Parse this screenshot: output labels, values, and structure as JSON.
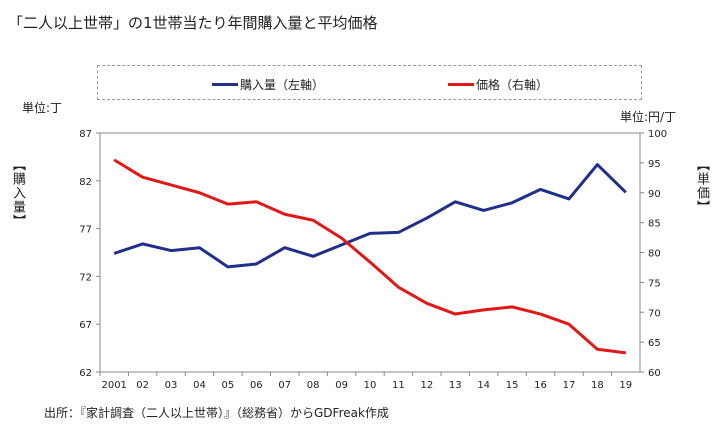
{
  "chart_data": {
    "type": "line",
    "title": "「二人以上世帯」の1世帯当たり年間購入量と平均価格",
    "categories": [
      "2001",
      "02",
      "03",
      "04",
      "05",
      "06",
      "07",
      "08",
      "09",
      "10",
      "11",
      "12",
      "13",
      "14",
      "15",
      "16",
      "17",
      "18",
      "19"
    ],
    "series": [
      {
        "name": "購入量（左軸）",
        "axis": "left",
        "color": "#1f2f8a",
        "values": [
          74.4,
          75.4,
          74.7,
          75.0,
          73.0,
          73.3,
          75.0,
          74.1,
          75.3,
          76.5,
          76.6,
          78.1,
          79.8,
          78.9,
          79.7,
          81.1,
          80.1,
          83.7,
          80.8
        ]
      },
      {
        "name": "価格（右軸）",
        "axis": "right",
        "color": "#e01818",
        "values": [
          95.5,
          92.6,
          91.3,
          90.0,
          88.1,
          88.5,
          86.4,
          85.4,
          82.4,
          78.4,
          74.2,
          71.5,
          69.7,
          70.4,
          70.9,
          69.7,
          68.0,
          63.8,
          63.2
        ]
      }
    ],
    "left_axis": {
      "label": "【購入量】",
      "unit": "単位:丁",
      "ylim": [
        62,
        87
      ],
      "ticks": [
        "62",
        "67",
        "72",
        "77",
        "82",
        "87"
      ]
    },
    "right_axis": {
      "label": "【単価】",
      "unit": "単位:円/丁",
      "ylim": [
        60,
        100
      ],
      "ticks": [
        "60",
        "65",
        "70",
        "75",
        "80",
        "85",
        "90",
        "95",
        "100"
      ]
    },
    "legend_position": "top",
    "grid": false
  },
  "source": "出所：『家計調査（二人以上世帯）』（総務省）からGDFreak作成"
}
